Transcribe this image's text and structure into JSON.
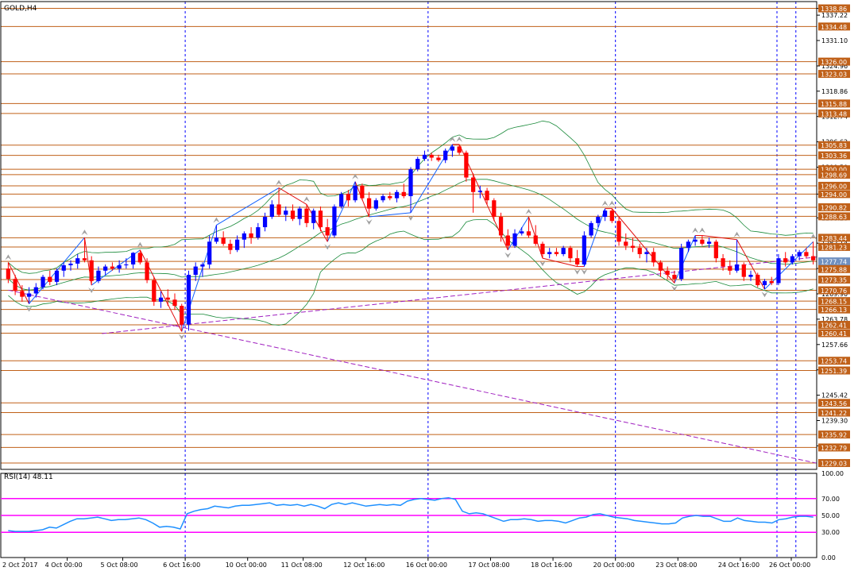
{
  "chart_data": [
    {
      "type": "candlestick",
      "symbol_label": "GOLD,H4",
      "ylim": [
        1227.5,
        1340.5
      ],
      "grid": false,
      "x_labels": [
        "2 Oct 2017",
        "4 Oct 00:00",
        "5 Oct 08:00",
        "6 Oct 16:00",
        "10 Oct 00:00",
        "11 Oct 08:00",
        "12 Oct 16:00",
        "16 Oct 00:00",
        "17 Oct 08:00",
        "18 Oct 16:00",
        "20 Oct 00:00",
        "23 Oct 08:00",
        "24 Oct 16:00",
        "26 Oct 00:00"
      ],
      "price_labels": [
        "1338.86",
        "1337.22",
        "1331.10",
        "1324.96",
        "1318.86",
        "1312.74",
        "1306.62",
        "1300.50",
        "1294.00",
        "1288.26",
        "1282.14",
        "1276.02",
        "1269.90",
        "1263.78",
        "1257.66",
        "1251.54",
        "1245.42",
        "1239.30",
        "1233.18"
      ],
      "level_labels": [
        "1338.86",
        "1334.48",
        "1326.00",
        "1323.03",
        "1315.88",
        "1313.48",
        "1305.83",
        "1303.36",
        "1300.00",
        "1298.69",
        "1296.00",
        "1294.00",
        "1290.82",
        "1288.63",
        "1283.44",
        "1281.23",
        "1277.74",
        "1275.88",
        "1273.35",
        "1270.76",
        "1268.15",
        "1266.13",
        "1262.41",
        "1260.41",
        "1253.74",
        "1251.39",
        "1243.56",
        "1241.22",
        "1235.92",
        "1232.79",
        "1229.03"
      ],
      "levels": [
        1338.86,
        1334.48,
        1326.0,
        1323.03,
        1315.88,
        1313.48,
        1305.83,
        1303.36,
        1300.0,
        1298.69,
        1296.0,
        1294.0,
        1290.82,
        1288.63,
        1283.44,
        1281.23,
        1277.74,
        1275.88,
        1273.35,
        1270.76,
        1268.15,
        1266.13,
        1262.41,
        1260.41,
        1253.74,
        1251.39,
        1243.56,
        1241.22,
        1235.92,
        1232.79,
        1229.03
      ],
      "current_price": 1277.74,
      "colors": {
        "bull": "#0000ff",
        "bear": "#ff0000",
        "level_line": "#c06018",
        "level_label_bg": "#c06018",
        "current_label_bg": "#7090c0",
        "bands": "#1a8a3a",
        "trendline": "#a020c0",
        "zigzag_up": "#1060ff",
        "zigzag_down": "#e01010",
        "fractal": "#a0a0a0",
        "separator": "#0000ff"
      },
      "trendlines": [
        {
          "from": [
            13.5,
            1260.3
          ],
          "to": [
            155,
            1278.8
          ]
        },
        {
          "from": [
            0,
            1270.8
          ],
          "to": [
            145,
            1229.0
          ]
        }
      ],
      "candles": [
        {
          "o": 1276.0,
          "h": 1277.5,
          "l": 1272.5,
          "c": 1273.5
        },
        {
          "o": 1273.5,
          "h": 1274.5,
          "l": 1269.6,
          "c": 1270.6
        },
        {
          "o": 1270.6,
          "h": 1272.0,
          "l": 1268.0,
          "c": 1269.2
        },
        {
          "o": 1269.2,
          "h": 1271.5,
          "l": 1267.5,
          "c": 1270.0
        },
        {
          "o": 1270.0,
          "h": 1272.5,
          "l": 1269.0,
          "c": 1271.5
        },
        {
          "o": 1271.5,
          "h": 1274.5,
          "l": 1271.0,
          "c": 1274.0
        },
        {
          "o": 1274.0,
          "h": 1275.5,
          "l": 1272.0,
          "c": 1272.8
        },
        {
          "o": 1272.8,
          "h": 1276.0,
          "l": 1272.0,
          "c": 1275.5
        },
        {
          "o": 1275.5,
          "h": 1277.5,
          "l": 1274.0,
          "c": 1276.8
        },
        {
          "o": 1276.8,
          "h": 1278.0,
          "l": 1275.5,
          "c": 1277.2
        },
        {
          "o": 1277.2,
          "h": 1279.5,
          "l": 1276.0,
          "c": 1278.5
        },
        {
          "o": 1278.5,
          "h": 1283.5,
          "l": 1277.5,
          "c": 1278.0
        },
        {
          "o": 1278.0,
          "h": 1279.0,
          "l": 1272.0,
          "c": 1273.0
        },
        {
          "o": 1273.0,
          "h": 1276.5,
          "l": 1272.5,
          "c": 1275.5
        },
        {
          "o": 1275.5,
          "h": 1277.0,
          "l": 1274.5,
          "c": 1276.5
        },
        {
          "o": 1276.5,
          "h": 1277.5,
          "l": 1275.5,
          "c": 1276.0
        },
        {
          "o": 1276.0,
          "h": 1278.0,
          "l": 1275.0,
          "c": 1276.8
        },
        {
          "o": 1276.8,
          "h": 1278.5,
          "l": 1276.0,
          "c": 1277.0
        },
        {
          "o": 1277.0,
          "h": 1280.0,
          "l": 1276.0,
          "c": 1279.8
        },
        {
          "o": 1279.8,
          "h": 1280.5,
          "l": 1277.0,
          "c": 1277.5
        },
        {
          "o": 1277.5,
          "h": 1278.5,
          "l": 1272.5,
          "c": 1273.2
        },
        {
          "o": 1273.2,
          "h": 1274.0,
          "l": 1267.0,
          "c": 1268.0
        },
        {
          "o": 1268.0,
          "h": 1270.5,
          "l": 1266.5,
          "c": 1269.0
        },
        {
          "o": 1269.0,
          "h": 1271.0,
          "l": 1267.0,
          "c": 1268.5
        },
        {
          "o": 1268.5,
          "h": 1270.0,
          "l": 1266.0,
          "c": 1267.0
        },
        {
          "o": 1267.0,
          "h": 1267.5,
          "l": 1260.8,
          "c": 1262.5
        },
        {
          "o": 1262.5,
          "h": 1275.5,
          "l": 1261.0,
          "c": 1274.5
        },
        {
          "o": 1274.5,
          "h": 1277.5,
          "l": 1273.0,
          "c": 1276.5
        },
        {
          "o": 1276.5,
          "h": 1277.5,
          "l": 1274.0,
          "c": 1277.0
        },
        {
          "o": 1277.0,
          "h": 1284.0,
          "l": 1276.0,
          "c": 1282.5
        },
        {
          "o": 1282.5,
          "h": 1286.5,
          "l": 1282.0,
          "c": 1283.5
        },
        {
          "o": 1283.5,
          "h": 1285.0,
          "l": 1281.5,
          "c": 1282.0
        },
        {
          "o": 1282.0,
          "h": 1283.0,
          "l": 1279.5,
          "c": 1280.5
        },
        {
          "o": 1280.5,
          "h": 1284.0,
          "l": 1280.0,
          "c": 1283.0
        },
        {
          "o": 1283.0,
          "h": 1285.0,
          "l": 1281.0,
          "c": 1284.5
        },
        {
          "o": 1284.5,
          "h": 1286.0,
          "l": 1282.0,
          "c": 1283.5
        },
        {
          "o": 1283.5,
          "h": 1287.0,
          "l": 1283.0,
          "c": 1286.0
        },
        {
          "o": 1286.0,
          "h": 1289.5,
          "l": 1285.0,
          "c": 1288.5
        },
        {
          "o": 1288.5,
          "h": 1292.5,
          "l": 1288.0,
          "c": 1291.5
        },
        {
          "o": 1291.5,
          "h": 1295.5,
          "l": 1288.5,
          "c": 1289.0
        },
        {
          "o": 1289.0,
          "h": 1291.0,
          "l": 1287.5,
          "c": 1290.0
        },
        {
          "o": 1290.0,
          "h": 1291.5,
          "l": 1287.5,
          "c": 1288.0
        },
        {
          "o": 1288.0,
          "h": 1291.0,
          "l": 1286.5,
          "c": 1290.5
        },
        {
          "o": 1290.5,
          "h": 1291.5,
          "l": 1286.0,
          "c": 1287.0
        },
        {
          "o": 1287.0,
          "h": 1290.5,
          "l": 1285.5,
          "c": 1290.0
        },
        {
          "o": 1290.0,
          "h": 1291.0,
          "l": 1285.0,
          "c": 1286.0
        },
        {
          "o": 1286.0,
          "h": 1288.0,
          "l": 1282.5,
          "c": 1284.0
        },
        {
          "o": 1284.0,
          "h": 1291.5,
          "l": 1283.5,
          "c": 1291.0
        },
        {
          "o": 1291.0,
          "h": 1294.5,
          "l": 1290.5,
          "c": 1294.0
        },
        {
          "o": 1294.0,
          "h": 1295.0,
          "l": 1291.0,
          "c": 1292.5
        },
        {
          "o": 1292.5,
          "h": 1297.0,
          "l": 1292.0,
          "c": 1296.0
        },
        {
          "o": 1296.0,
          "h": 1296.5,
          "l": 1292.5,
          "c": 1293.0
        },
        {
          "o": 1293.0,
          "h": 1294.5,
          "l": 1288.5,
          "c": 1290.5
        },
        {
          "o": 1290.5,
          "h": 1293.0,
          "l": 1290.0,
          "c": 1292.5
        },
        {
          "o": 1292.5,
          "h": 1294.0,
          "l": 1292.0,
          "c": 1293.5
        },
        {
          "o": 1293.5,
          "h": 1294.5,
          "l": 1292.5,
          "c": 1293.0
        },
        {
          "o": 1293.0,
          "h": 1295.0,
          "l": 1292.0,
          "c": 1294.5
        },
        {
          "o": 1294.5,
          "h": 1296.5,
          "l": 1293.0,
          "c": 1293.5
        },
        {
          "o": 1293.5,
          "h": 1300.5,
          "l": 1289.5,
          "c": 1300.0
        },
        {
          "o": 1300.0,
          "h": 1303.0,
          "l": 1299.5,
          "c": 1302.5
        },
        {
          "o": 1302.5,
          "h": 1304.5,
          "l": 1302.0,
          "c": 1303.5
        },
        {
          "o": 1303.5,
          "h": 1304.0,
          "l": 1302.0,
          "c": 1302.8
        },
        {
          "o": 1302.8,
          "h": 1303.5,
          "l": 1301.8,
          "c": 1302.2
        },
        {
          "o": 1302.2,
          "h": 1305.0,
          "l": 1301.5,
          "c": 1304.5
        },
        {
          "o": 1304.5,
          "h": 1306.0,
          "l": 1303.0,
          "c": 1305.5
        },
        {
          "o": 1305.5,
          "h": 1306.0,
          "l": 1303.5,
          "c": 1304.0
        },
        {
          "o": 1304.0,
          "h": 1304.5,
          "l": 1297.0,
          "c": 1298.0
        },
        {
          "o": 1298.0,
          "h": 1299.0,
          "l": 1289.5,
          "c": 1294.5
        },
        {
          "o": 1294.5,
          "h": 1296.0,
          "l": 1293.0,
          "c": 1294.8
        },
        {
          "o": 1294.8,
          "h": 1295.5,
          "l": 1291.5,
          "c": 1292.5
        },
        {
          "o": 1292.5,
          "h": 1293.0,
          "l": 1287.5,
          "c": 1288.5
        },
        {
          "o": 1288.5,
          "h": 1289.5,
          "l": 1282.5,
          "c": 1284.0
        },
        {
          "o": 1284.0,
          "h": 1285.5,
          "l": 1280.5,
          "c": 1281.5
        },
        {
          "o": 1281.5,
          "h": 1285.5,
          "l": 1281.0,
          "c": 1284.5
        },
        {
          "o": 1284.5,
          "h": 1286.0,
          "l": 1284.0,
          "c": 1285.0
        },
        {
          "o": 1285.0,
          "h": 1288.5,
          "l": 1283.5,
          "c": 1284.0
        },
        {
          "o": 1284.0,
          "h": 1286.5,
          "l": 1281.5,
          "c": 1282.0
        },
        {
          "o": 1282.0,
          "h": 1282.5,
          "l": 1278.5,
          "c": 1279.5
        },
        {
          "o": 1279.5,
          "h": 1281.0,
          "l": 1278.5,
          "c": 1280.0
        },
        {
          "o": 1280.0,
          "h": 1281.0,
          "l": 1279.0,
          "c": 1279.5
        },
        {
          "o": 1279.5,
          "h": 1281.5,
          "l": 1279.0,
          "c": 1281.0
        },
        {
          "o": 1281.0,
          "h": 1281.5,
          "l": 1277.5,
          "c": 1278.5
        },
        {
          "o": 1278.5,
          "h": 1280.5,
          "l": 1276.5,
          "c": 1277.0
        },
        {
          "o": 1277.0,
          "h": 1285.0,
          "l": 1276.5,
          "c": 1284.0
        },
        {
          "o": 1284.0,
          "h": 1287.5,
          "l": 1283.5,
          "c": 1287.0
        },
        {
          "o": 1287.0,
          "h": 1289.0,
          "l": 1286.0,
          "c": 1288.5
        },
        {
          "o": 1288.5,
          "h": 1290.5,
          "l": 1287.5,
          "c": 1290.0
        },
        {
          "o": 1290.0,
          "h": 1290.5,
          "l": 1287.0,
          "c": 1287.5
        },
        {
          "o": 1287.5,
          "h": 1288.5,
          "l": 1281.5,
          "c": 1282.5
        },
        {
          "o": 1282.5,
          "h": 1284.5,
          "l": 1280.5,
          "c": 1281.5
        },
        {
          "o": 1281.5,
          "h": 1283.5,
          "l": 1280.0,
          "c": 1281.0
        },
        {
          "o": 1281.0,
          "h": 1282.0,
          "l": 1278.5,
          "c": 1279.5
        },
        {
          "o": 1279.5,
          "h": 1281.0,
          "l": 1277.5,
          "c": 1280.0
        },
        {
          "o": 1280.0,
          "h": 1281.0,
          "l": 1276.5,
          "c": 1277.5
        },
        {
          "o": 1277.5,
          "h": 1278.0,
          "l": 1274.0,
          "c": 1275.5
        },
        {
          "o": 1275.5,
          "h": 1276.5,
          "l": 1273.5,
          "c": 1274.5
        },
        {
          "o": 1274.5,
          "h": 1275.5,
          "l": 1272.5,
          "c": 1273.5
        },
        {
          "o": 1273.5,
          "h": 1282.0,
          "l": 1273.0,
          "c": 1281.0
        },
        {
          "o": 1281.0,
          "h": 1283.0,
          "l": 1280.0,
          "c": 1282.5
        },
        {
          "o": 1282.5,
          "h": 1284.0,
          "l": 1281.5,
          "c": 1283.0
        },
        {
          "o": 1283.0,
          "h": 1284.0,
          "l": 1281.5,
          "c": 1282.0
        },
        {
          "o": 1282.0,
          "h": 1283.5,
          "l": 1281.0,
          "c": 1282.5
        },
        {
          "o": 1282.5,
          "h": 1283.0,
          "l": 1277.5,
          "c": 1278.5
        },
        {
          "o": 1278.5,
          "h": 1279.5,
          "l": 1275.5,
          "c": 1276.5
        },
        {
          "o": 1276.5,
          "h": 1278.0,
          "l": 1274.5,
          "c": 1275.5
        },
        {
          "o": 1275.5,
          "h": 1283.0,
          "l": 1275.0,
          "c": 1277.0
        },
        {
          "o": 1277.0,
          "h": 1277.5,
          "l": 1273.0,
          "c": 1274.0
        },
        {
          "o": 1274.0,
          "h": 1275.5,
          "l": 1273.0,
          "c": 1274.5
        },
        {
          "o": 1274.5,
          "h": 1275.0,
          "l": 1271.5,
          "c": 1272.0
        },
        {
          "o": 1272.0,
          "h": 1273.5,
          "l": 1271.0,
          "c": 1273.0
        },
        {
          "o": 1273.0,
          "h": 1274.0,
          "l": 1272.0,
          "c": 1272.5
        },
        {
          "o": 1272.5,
          "h": 1279.5,
          "l": 1272.0,
          "c": 1278.5
        },
        {
          "o": 1278.5,
          "h": 1280.0,
          "l": 1276.5,
          "c": 1277.5
        },
        {
          "o": 1277.5,
          "h": 1279.5,
          "l": 1277.0,
          "c": 1279.0
        },
        {
          "o": 1279.0,
          "h": 1280.5,
          "l": 1278.0,
          "c": 1280.0
        },
        {
          "o": 1280.0,
          "h": 1281.0,
          "l": 1278.5,
          "c": 1279.0
        },
        {
          "o": 1279.0,
          "h": 1282.5,
          "l": 1277.0,
          "c": 1278.0
        }
      ]
    },
    {
      "type": "line",
      "title": "RSI(14) 48.11",
      "ylim": [
        0,
        100
      ],
      "tick_labels": [
        "100.00",
        "70.00",
        "50.00",
        "30.00",
        "0.00"
      ],
      "levels": [
        70,
        50,
        30
      ],
      "colors": {
        "line": "#1e90ff",
        "level": "#ff00ff"
      },
      "series": [
        {
          "name": "RSI(14)",
          "values": [
            32,
            31,
            31,
            31,
            32,
            33,
            36,
            35,
            39,
            43,
            46,
            46,
            47,
            48,
            46,
            44,
            45,
            45,
            46,
            47,
            45,
            41,
            36,
            37,
            36,
            34,
            52,
            55,
            57,
            58,
            61,
            60,
            59,
            61,
            62,
            62,
            63,
            64,
            65,
            62,
            63,
            62,
            63,
            61,
            63,
            61,
            58,
            63,
            65,
            63,
            65,
            63,
            61,
            62,
            63,
            62,
            63,
            62,
            67,
            69,
            70,
            69,
            68,
            70,
            71,
            69,
            55,
            52,
            53,
            52,
            49,
            46,
            43,
            45,
            45,
            46,
            45,
            43,
            44,
            44,
            43,
            41,
            44,
            47,
            48,
            51,
            52,
            50,
            48,
            47,
            46,
            44,
            43,
            42,
            41,
            40,
            40,
            41,
            47,
            49,
            50,
            49,
            49,
            46,
            43,
            43,
            47,
            44,
            43,
            42,
            42,
            41,
            45,
            46,
            48,
            49,
            49,
            48
          ]
        }
      ],
      "x_labels": [
        "2 Oct 2017",
        "4 Oct 00:00",
        "5 Oct 08:00",
        "6 Oct 16:00",
        "10 Oct 00:00",
        "11 Oct 08:00",
        "12 Oct 16:00",
        "16 Oct 00:00",
        "17 Oct 08:00",
        "18 Oct 16:00",
        "20 Oct 00:00",
        "23 Oct 08:00",
        "24 Oct 16:00",
        "26 Oct 00:00"
      ]
    }
  ]
}
